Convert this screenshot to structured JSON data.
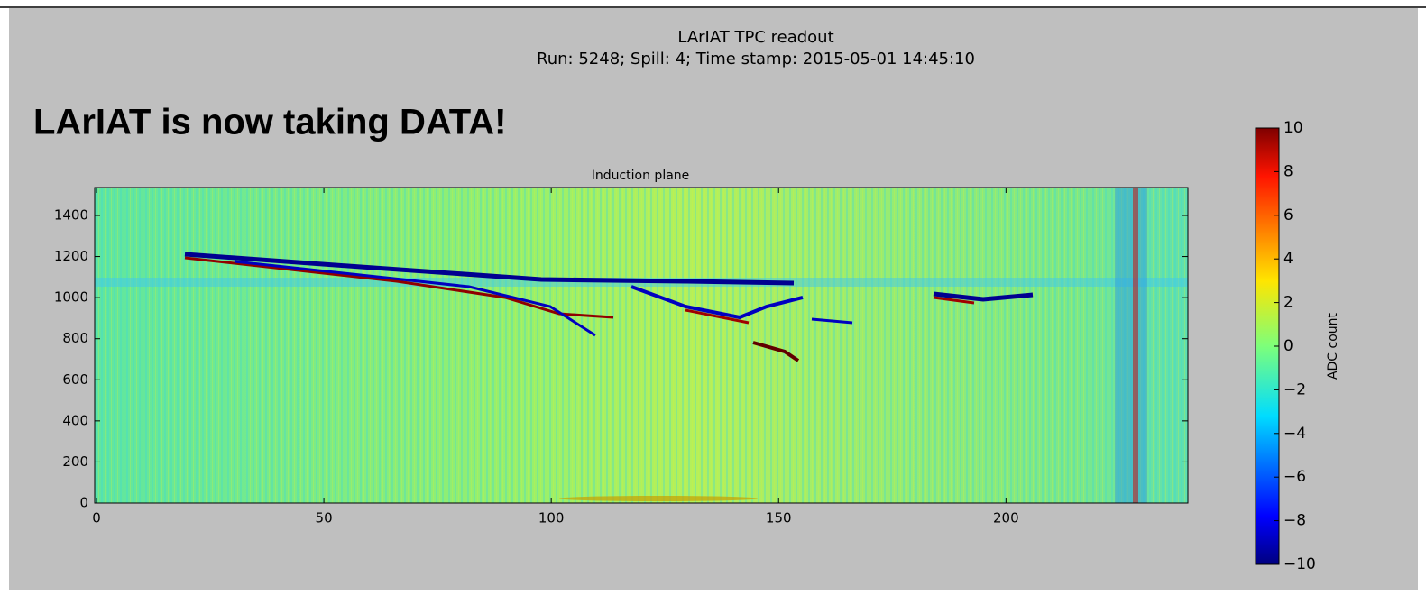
{
  "banner": "LArIAT is now taking DATA!",
  "chart_data": {
    "type": "heatmap",
    "title": "LArIAT TPC readout",
    "subtitle": "Run: 5248; Spill: 4; Time stamp: 2015-05-01 14:45:10",
    "panel_title": "Induction plane",
    "xlim": [
      0,
      240
    ],
    "xticks": [
      0,
      50,
      100,
      150,
      200
    ],
    "ylim": [
      0,
      1536
    ],
    "yticks": [
      0,
      200,
      400,
      600,
      800,
      1000,
      1200,
      1400
    ],
    "colorbar": {
      "label": "ADC count",
      "lim": [
        -10,
        10
      ],
      "ticks": [
        {
          "value": -10,
          "label": "−10"
        },
        {
          "value": -8,
          "label": "−8"
        },
        {
          "value": -6,
          "label": "−6"
        },
        {
          "value": -4,
          "label": "−4"
        },
        {
          "value": -2,
          "label": "−2"
        },
        0,
        2,
        4,
        6,
        8,
        10
      ]
    }
  }
}
